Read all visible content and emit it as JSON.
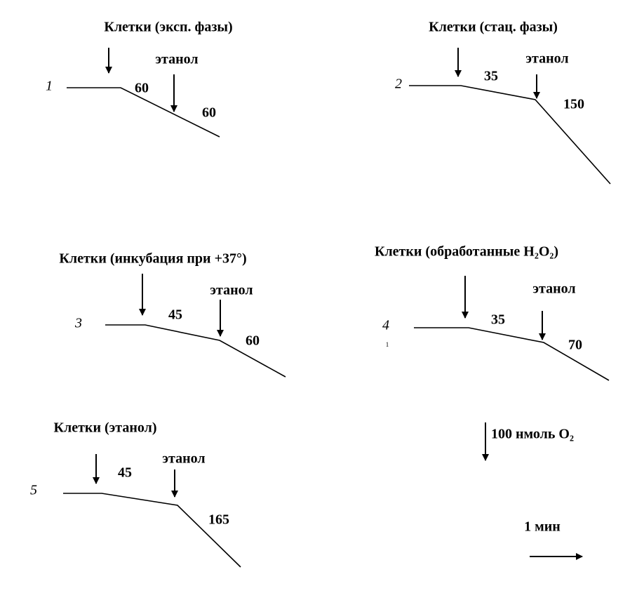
{
  "panels": [
    {
      "title": "Клетки (эксп. фазы)",
      "number": "1",
      "rate_before": "60",
      "ethanol_label": "этанол",
      "rate_after": "60"
    },
    {
      "title": "Клетки (стац. фазы)",
      "number": "2",
      "rate_before": "35",
      "ethanol_label": "этанол",
      "rate_after": "150"
    },
    {
      "title": "Клетки (инкубация при +37°)",
      "number": "3",
      "rate_before": "45",
      "ethanol_label": "этанол",
      "rate_after": "60"
    },
    {
      "title": "Клетки (обработанные H₂O₂)",
      "number": "4",
      "footnote_mark": "1",
      "rate_before": "35",
      "ethanol_label": "этанол",
      "rate_after": "70"
    },
    {
      "title": "Клетки (этанол)",
      "number": "5",
      "rate_before": "45",
      "ethanol_label": "этанол",
      "rate_after": "165"
    }
  ],
  "scale": {
    "vertical": "100 нмоль O₂",
    "horizontal": "1 мин"
  }
}
